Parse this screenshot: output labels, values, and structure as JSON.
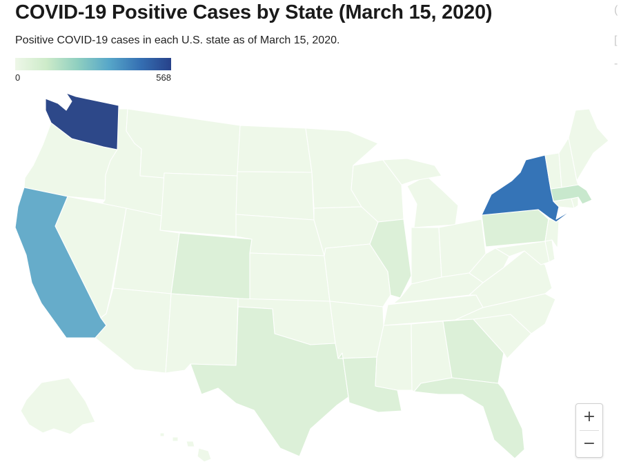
{
  "header": {
    "title": "COVID-19 Positive Cases by State (March 15, 2020)",
    "subtitle": "Positive COVID-19 cases in each U.S. state as of March 15, 2020."
  },
  "legend": {
    "min_label": "0",
    "max_label": "568",
    "colors": [
      "#eef7e8",
      "#cdebc9",
      "#8fcfc0",
      "#57a7c9",
      "#3570b3",
      "#27418a"
    ]
  },
  "map": {
    "default_fill": "#eef8e9",
    "state_fills": {
      "washington": "#2d4889",
      "new-york": "#3574b7",
      "california": "#66acca",
      "massachusetts": "#c8e8cd",
      "light-tint": "#dcf0d8"
    }
  },
  "controls": {
    "zoom_in": "+",
    "zoom_out": "−"
  },
  "edge_glyphs": [
    "(",
    "[",
    "-"
  ]
}
